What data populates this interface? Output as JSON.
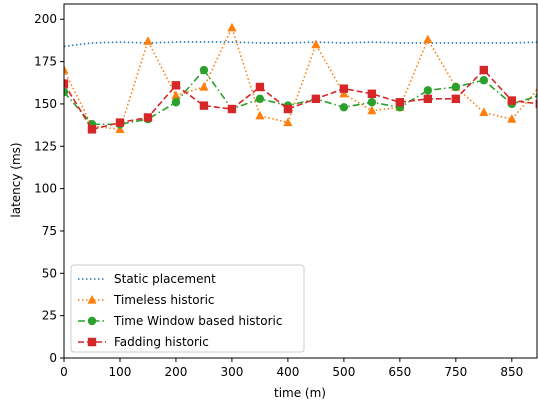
{
  "chart_data": {
    "type": "line",
    "xlabel": "time (m)",
    "ylabel": "latency (ms)",
    "x": [
      0,
      50,
      100,
      150,
      200,
      250,
      300,
      350,
      400,
      450,
      500,
      550,
      600,
      650,
      700,
      750,
      800,
      850
    ],
    "x_tick_labels": [
      "0",
      "100",
      "200",
      "300",
      "400",
      "500",
      "650",
      "750",
      "850"
    ],
    "xlim": [
      0,
      845
    ],
    "y_ticks": [
      0,
      25,
      50,
      75,
      100,
      125,
      150,
      175,
      200
    ],
    "ylim": [
      0,
      209
    ],
    "grid": false,
    "legend_position": "lower-left",
    "series": [
      {
        "name": "Static placement",
        "color": "#1f77b4",
        "marker": "none",
        "linestyle": "dotted",
        "values": [
          184,
          186,
          186.5,
          186,
          186.5,
          186.5,
          186.5,
          186,
          186,
          186.5,
          186,
          186.5,
          186,
          186,
          186,
          186,
          186,
          186.5
        ]
      },
      {
        "name": "Timeless historic",
        "color": "#ff7f0e",
        "marker": "triangle",
        "linestyle": "dotted",
        "values": [
          170,
          137,
          135,
          187,
          155,
          160,
          195,
          143,
          139,
          185,
          156,
          146,
          148,
          188,
          160,
          145,
          141,
          160
        ]
      },
      {
        "name": "Time Window based historic",
        "color": "#2ca02c",
        "marker": "circle",
        "linestyle": "dashdot",
        "values": [
          157,
          138,
          138,
          141,
          151,
          170,
          147,
          153,
          149,
          153,
          148,
          151,
          148,
          158,
          160,
          164,
          150,
          155
        ]
      },
      {
        "name": "Fadding historic",
        "color": "#d62728",
        "marker": "square",
        "linestyle": "dashed",
        "values": [
          162,
          135,
          139,
          142,
          161,
          149,
          147,
          160,
          147,
          153,
          159,
          156,
          151,
          153,
          153,
          170,
          152,
          150
        ]
      }
    ]
  }
}
